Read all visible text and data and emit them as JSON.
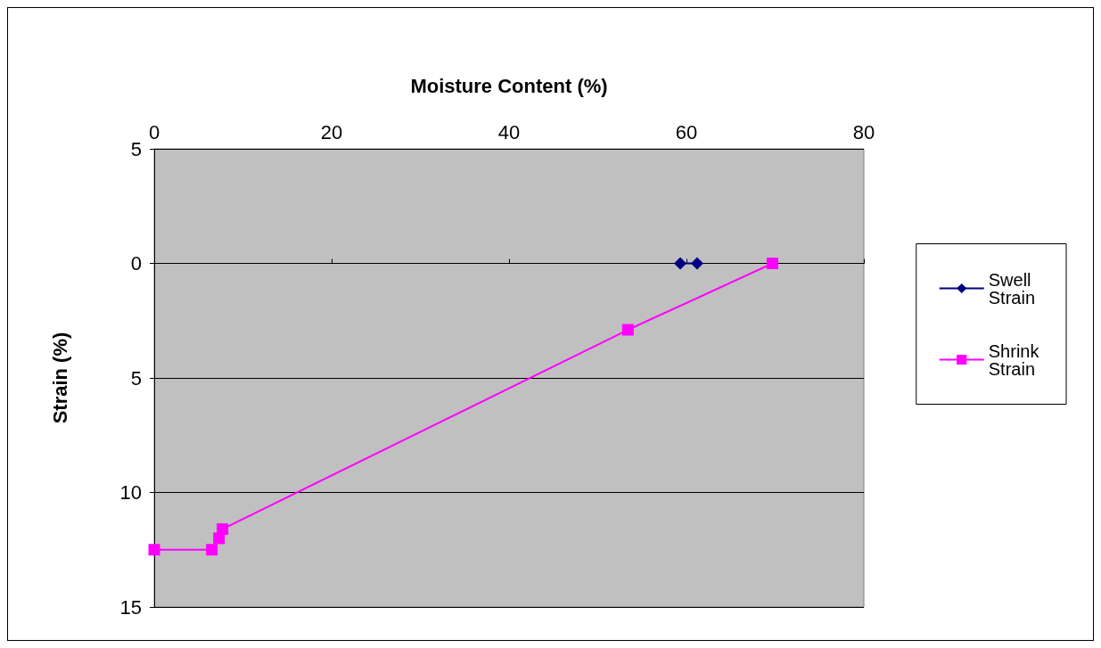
{
  "chart_data": {
    "type": "line",
    "xlabel": "Moisture Content (%)",
    "ylabel": "Strain (%)",
    "series": [
      {
        "name": "Swell Strain",
        "color": "#000080",
        "marker": "diamond",
        "x": [
          59.3,
          61.2
        ],
        "values": [
          0,
          0
        ]
      },
      {
        "name": "Shrink Strain",
        "color": "#ff00ff",
        "marker": "square",
        "x": [
          0,
          6.5,
          7.3,
          7.7,
          53.4,
          69.7
        ],
        "values": [
          12.5,
          12.5,
          12,
          11.6,
          2.9,
          0
        ]
      }
    ],
    "xlim": [
      0,
      80
    ],
    "xticks": [
      0,
      20,
      40,
      60,
      80
    ],
    "ylim": [
      15,
      -5
    ],
    "yticks": [
      {
        "value": -5,
        "label": "5"
      },
      0,
      5,
      10,
      15
    ],
    "grid": "y",
    "legend": "right"
  }
}
